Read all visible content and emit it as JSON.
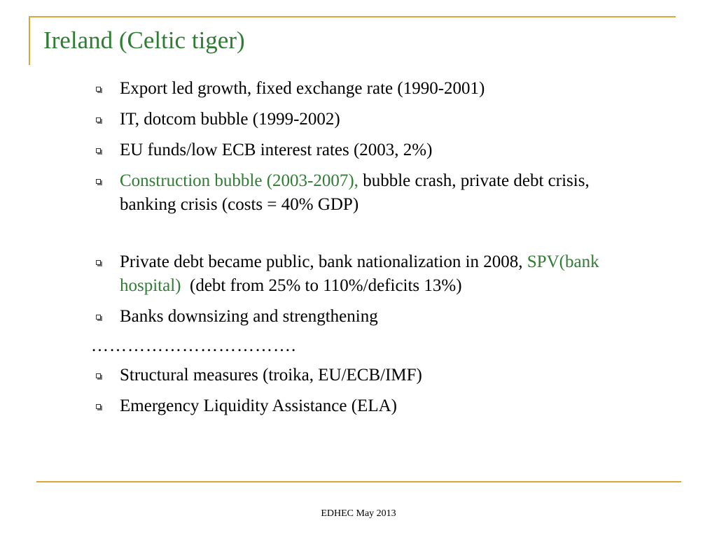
{
  "slide": {
    "title": "Ireland (Celtic tiger)",
    "footer": "EDHEC May 2013",
    "accent_color": "#2e7d32",
    "rule_color": "#d9a83a",
    "bullet_icon": "square-bullet-icon"
  },
  "bullets": [
    {
      "text": "Export led growth, fixed exchange rate (1990-2001)"
    },
    {
      "text": "IT, dotcom bubble (1999-2002)"
    },
    {
      "text": "EU funds/low ECB interest rates (2003, 2%)"
    },
    {
      "highlight": "Construction bubble (2003-2007),",
      "text": " bubble crash, private debt crisis, banking crisis (costs = 40% GDP)"
    },
    {
      "lead": "Private debt became public, bank nationalization in 2008, ",
      "highlight": "SPV(bank hospital)",
      "text": "  (debt from 25% to 110%/deficits 13%)"
    },
    {
      "text": "Banks downsizing and strengthening"
    },
    {
      "text": "Structural measures (troika, EU/ECB/IMF)"
    },
    {
      "text": "Emergency Liquidity Assistance (ELA)"
    }
  ],
  "separator": "……………………………."
}
